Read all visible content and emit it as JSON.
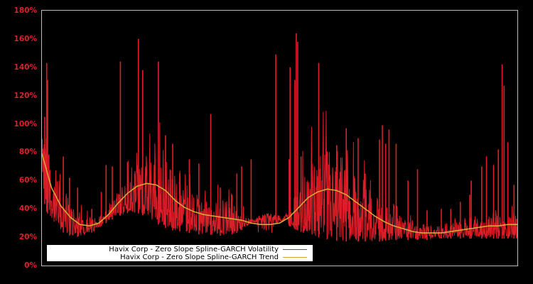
{
  "chart_data": {
    "type": "line",
    "title": "",
    "xlabel": "",
    "ylabel": "",
    "ylim": [
      0,
      180
    ],
    "yticks": [
      "0%",
      "20%",
      "40%",
      "60%",
      "80%",
      "100%",
      "120%",
      "140%",
      "160%",
      "180%"
    ],
    "grid": false,
    "legend_position": "lower-left",
    "background": "#000000",
    "axis_color": "#bbbbbb",
    "tick_label_color": "#e0202a",
    "series": [
      {
        "name": "Havix Corp - Zero Slope Spline-GARCH Volatility",
        "color": "#dc1e28",
        "x_fraction": [
          0.0,
          0.005,
          0.01,
          0.02,
          0.035,
          0.05,
          0.07,
          0.09,
          0.11,
          0.13,
          0.15,
          0.17,
          0.19,
          0.21,
          0.23,
          0.25,
          0.27,
          0.29,
          0.31,
          0.33,
          0.35,
          0.37,
          0.39,
          0.41,
          0.43,
          0.45,
          0.47,
          0.49,
          0.51,
          0.53,
          0.55,
          0.57,
          0.59,
          0.61,
          0.63,
          0.65,
          0.67,
          0.69,
          0.71,
          0.73,
          0.75,
          0.77,
          0.79,
          0.81,
          0.83,
          0.85,
          0.87,
          0.89,
          0.91,
          0.93,
          0.95,
          0.97,
          0.99,
          1.0
        ],
        "baseline_pct": [
          70,
          45,
          38,
          32,
          26,
          22,
          20,
          21,
          24,
          29,
          33,
          36,
          38,
          36,
          32,
          28,
          25,
          24,
          23,
          22,
          22,
          21,
          21,
          23,
          27,
          32,
          35,
          34,
          30,
          26,
          23,
          21,
          19,
          18,
          17,
          17,
          17,
          17,
          17,
          18,
          18,
          18,
          18,
          18,
          19,
          19,
          19,
          19,
          19,
          19,
          19,
          19,
          19,
          19
        ],
        "spikes": [
          {
            "x": 0.01,
            "v": 143
          },
          {
            "x": 0.012,
            "v": 131
          },
          {
            "x": 0.006,
            "v": 105
          },
          {
            "x": 0.045,
            "v": 77
          },
          {
            "x": 0.058,
            "v": 62
          },
          {
            "x": 0.075,
            "v": 55
          },
          {
            "x": 0.105,
            "v": 40
          },
          {
            "x": 0.125,
            "v": 52
          },
          {
            "x": 0.135,
            "v": 71
          },
          {
            "x": 0.148,
            "v": 70
          },
          {
            "x": 0.165,
            "v": 144
          },
          {
            "x": 0.18,
            "v": 73
          },
          {
            "x": 0.195,
            "v": 65
          },
          {
            "x": 0.203,
            "v": 160
          },
          {
            "x": 0.212,
            "v": 138
          },
          {
            "x": 0.245,
            "v": 144
          },
          {
            "x": 0.26,
            "v": 92
          },
          {
            "x": 0.275,
            "v": 86
          },
          {
            "x": 0.29,
            "v": 65
          },
          {
            "x": 0.31,
            "v": 75
          },
          {
            "x": 0.33,
            "v": 72
          },
          {
            "x": 0.355,
            "v": 107
          },
          {
            "x": 0.375,
            "v": 55
          },
          {
            "x": 0.4,
            "v": 50
          },
          {
            "x": 0.41,
            "v": 65
          },
          {
            "x": 0.42,
            "v": 70
          },
          {
            "x": 0.44,
            "v": 75
          },
          {
            "x": 0.492,
            "v": 149
          },
          {
            "x": 0.52,
            "v": 75
          },
          {
            "x": 0.522,
            "v": 140
          },
          {
            "x": 0.535,
            "v": 164
          },
          {
            "x": 0.538,
            "v": 158
          },
          {
            "x": 0.532,
            "v": 131
          },
          {
            "x": 0.545,
            "v": 77
          },
          {
            "x": 0.582,
            "v": 143
          },
          {
            "x": 0.6,
            "v": 80
          },
          {
            "x": 0.62,
            "v": 85
          },
          {
            "x": 0.64,
            "v": 97
          },
          {
            "x": 0.665,
            "v": 90
          },
          {
            "x": 0.68,
            "v": 65
          },
          {
            "x": 0.71,
            "v": 89
          },
          {
            "x": 0.716,
            "v": 99
          },
          {
            "x": 0.723,
            "v": 86
          },
          {
            "x": 0.73,
            "v": 96
          },
          {
            "x": 0.745,
            "v": 86
          },
          {
            "x": 0.77,
            "v": 60
          },
          {
            "x": 0.79,
            "v": 68
          },
          {
            "x": 0.81,
            "v": 39
          },
          {
            "x": 0.84,
            "v": 40
          },
          {
            "x": 0.86,
            "v": 40
          },
          {
            "x": 0.88,
            "v": 45
          },
          {
            "x": 0.9,
            "v": 50
          },
          {
            "x": 0.903,
            "v": 60
          },
          {
            "x": 0.925,
            "v": 70
          },
          {
            "x": 0.935,
            "v": 77
          },
          {
            "x": 0.95,
            "v": 71
          },
          {
            "x": 0.96,
            "v": 82
          },
          {
            "x": 0.968,
            "v": 142
          },
          {
            "x": 0.972,
            "v": 127
          },
          {
            "x": 0.98,
            "v": 87
          },
          {
            "x": 0.993,
            "v": 57
          },
          {
            "x": 0.998,
            "v": 33
          }
        ]
      },
      {
        "name": "Havix Corp - Zero Slope Spline-GARCH Trend",
        "color": "#d4a838",
        "x_fraction": [
          0.0,
          0.02,
          0.04,
          0.06,
          0.08,
          0.1,
          0.12,
          0.14,
          0.16,
          0.18,
          0.2,
          0.22,
          0.24,
          0.26,
          0.28,
          0.3,
          0.32,
          0.34,
          0.36,
          0.38,
          0.4,
          0.42,
          0.44,
          0.46,
          0.48,
          0.5,
          0.52,
          0.54,
          0.56,
          0.58,
          0.6,
          0.62,
          0.64,
          0.66,
          0.68,
          0.7,
          0.72,
          0.74,
          0.76,
          0.78,
          0.8,
          0.82,
          0.84,
          0.86,
          0.88,
          0.9,
          0.92,
          0.94,
          0.96,
          0.98,
          1.0
        ],
        "values_pct": [
          79,
          55,
          42,
          34,
          29,
          28,
          30,
          36,
          44,
          51,
          56,
          58,
          57,
          53,
          46,
          41,
          38,
          36,
          35,
          34,
          33,
          32,
          30,
          29,
          29,
          30,
          34,
          41,
          48,
          52,
          54,
          53,
          50,
          45,
          40,
          35,
          31,
          28,
          26,
          24,
          23,
          23,
          23,
          24,
          25,
          26,
          27,
          28,
          28,
          29,
          29
        ]
      }
    ]
  },
  "legend": {
    "entries": [
      {
        "label": "Havix Corp - Zero Slope Spline-GARCH Volatility",
        "color": "#dc1e28"
      },
      {
        "label": "Havix Corp - Zero Slope Spline-GARCH Trend",
        "color": "#d4a838"
      }
    ]
  }
}
